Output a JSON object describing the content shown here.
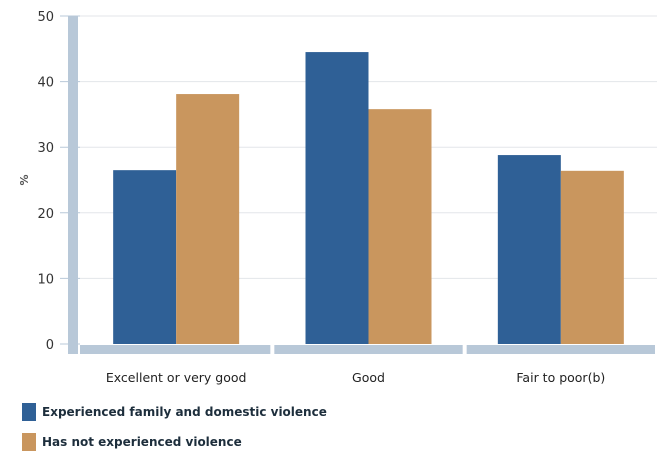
{
  "chart_data": {
    "type": "bar",
    "ylabel": "%",
    "xlabel": "",
    "ylim": [
      0,
      50
    ],
    "yticks": [
      0,
      10,
      20,
      30,
      40,
      50
    ],
    "grid": true,
    "legend_position": "bottom-left",
    "categories": [
      "Excellent or very good",
      "Good",
      "Fair to poor(b)"
    ],
    "series": [
      {
        "name": "Experienced family and domestic violence",
        "color": "#2f6096",
        "values": [
          26.5,
          44.5,
          28.8
        ]
      },
      {
        "name": "Has not experienced violence",
        "color": "#c9965e",
        "values": [
          38.1,
          35.8,
          26.4
        ]
      }
    ]
  }
}
